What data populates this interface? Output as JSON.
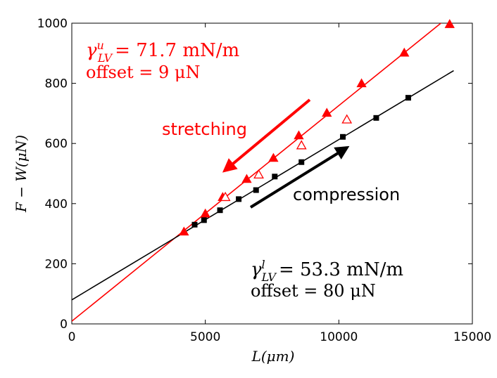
{
  "chart_data": {
    "type": "scatter",
    "xlabel": "L(μm)",
    "ylabel": "F − W(μN)",
    "xlim": [
      0,
      15000
    ],
    "ylim": [
      0,
      1000
    ],
    "xticks": [
      0,
      5000,
      10000,
      15000
    ],
    "yticks": [
      0,
      200,
      400,
      600,
      800,
      1000
    ],
    "grid": false,
    "series": [
      {
        "name": "stretching (filled)",
        "color": "#ff0000",
        "marker": "triangle-filled",
        "x": [
          4200,
          5000,
          5650,
          6550,
          7550,
          8500,
          9550,
          10850,
          12450,
          14150
        ],
        "y": [
          305,
          365,
          420,
          480,
          550,
          625,
          700,
          798,
          900,
          995
        ]
      },
      {
        "name": "stretching (open)",
        "color": "#ff0000",
        "marker": "triangle-open",
        "x": [
          5750,
          7000,
          8600,
          10300
        ],
        "y": [
          420,
          495,
          592,
          678
        ]
      },
      {
        "name": "compression",
        "color": "#000000",
        "marker": "square-filled",
        "x": [
          4600,
          4950,
          5550,
          6250,
          6900,
          7600,
          8600,
          10150,
          11400,
          12600
        ],
        "y": [
          330,
          345,
          378,
          415,
          445,
          490,
          538,
          622,
          685,
          752
        ]
      }
    ],
    "fits": [
      {
        "name": "red fit",
        "color": "#ff0000",
        "slope": 0.0717,
        "intercept": 9,
        "x_range": [
          0,
          14300
        ]
      },
      {
        "name": "black fit",
        "color": "#000000",
        "slope": 0.0533,
        "intercept": 80,
        "x_range": [
          0,
          14300
        ]
      }
    ],
    "annotations": {
      "red": {
        "gamma_symbol": "γ",
        "gamma_sup": "u",
        "gamma_sub": "LV",
        "gamma_value": "= 71.7 mN/m",
        "offset": "offset = 9 μN"
      },
      "black": {
        "gamma_symbol": "γ",
        "gamma_sup": "l",
        "gamma_sub": "LV",
        "gamma_value": "= 53.3 mN/m",
        "offset": "offset = 80 μN"
      },
      "stretching_label": "stretching",
      "compression_label": "compression"
    }
  }
}
